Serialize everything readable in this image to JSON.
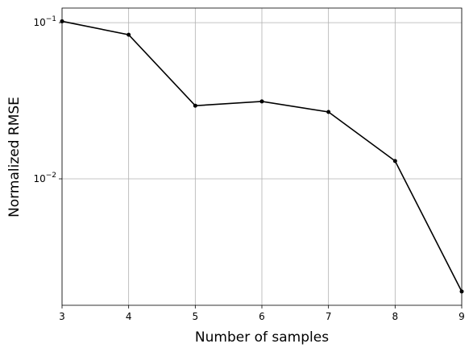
{
  "chart_data": {
    "type": "line",
    "x_label": "Number of samples",
    "y_label": "Normalized RMSE",
    "x": [
      3,
      4,
      5,
      6,
      7,
      8,
      9
    ],
    "series": [
      {
        "color": "#000000",
        "values": [
          0.102,
          0.0837,
          0.0294,
          0.0313,
          0.0268,
          0.013,
          0.0019
        ]
      }
    ],
    "xlim": [
      3,
      9
    ],
    "xticks": [
      3,
      4,
      5,
      6,
      7,
      8,
      9
    ],
    "ylim": [
      0.00155,
      0.124
    ],
    "yscale": "log",
    "yticks": [
      {
        "value": 0.01,
        "label": "10^−2"
      },
      {
        "value": 0.1,
        "label": "10^−1"
      }
    ],
    "grid": true
  }
}
